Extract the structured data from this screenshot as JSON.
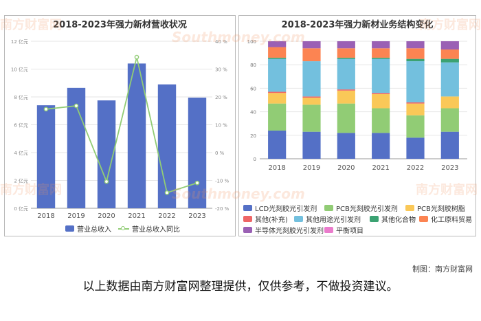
{
  "credit": "制图：南方财富网",
  "disclaimer": "以上数据由南方财富网整理提供，仅供参考，不做投资建议。",
  "watermark": {
    "brand": "南方财富网",
    "site": "Southmoney.com"
  },
  "chart_data": [
    {
      "type": "bar",
      "title": "2018-2023年强力新材营收状况",
      "categories": [
        "2018",
        "2019",
        "2020",
        "2021",
        "2022",
        "2023"
      ],
      "y_left": {
        "range": [
          0,
          12
        ],
        "ticks": [
          0,
          2,
          4,
          6,
          8,
          10,
          12
        ],
        "tick_labels": [
          "0 亿元",
          "2 亿元",
          "4 亿元",
          "6 亿元",
          "8 亿元",
          "10 亿元",
          "12 亿元"
        ]
      },
      "y_right": {
        "range": [
          -20,
          40
        ],
        "ticks": [
          -20,
          -10,
          0,
          10,
          20,
          30,
          40
        ],
        "tick_labels": [
          "-20 %",
          "-10 %",
          "0 %",
          "10 %",
          "20 %",
          "30 %",
          "40 %"
        ]
      },
      "grid": true,
      "legend_position": "bottom",
      "series": [
        {
          "name": "营业总收入",
          "type": "bar",
          "axis": "left",
          "color": "#5470c6",
          "values": [
            7.4,
            8.65,
            7.75,
            10.4,
            8.9,
            7.95
          ]
        },
        {
          "name": "营业总收入同比",
          "type": "line",
          "axis": "right",
          "color": "#91cc75",
          "values": [
            15.6,
            16.8,
            -10.4,
            34.3,
            -14.4,
            -10.9
          ]
        }
      ]
    },
    {
      "type": "bar",
      "stacked": true,
      "normalized": true,
      "title": "2018-2023年强力新材业务结构变化",
      "categories": [
        "2018",
        "2019",
        "2020",
        "2021",
        "2022",
        "2023"
      ],
      "y": {
        "range": [
          0,
          100
        ],
        "ticks": [
          0,
          20,
          40,
          60,
          80,
          100
        ],
        "tick_labels": [
          "0",
          "20",
          "40",
          "60",
          "80",
          "100"
        ]
      },
      "grid": true,
      "legend_position": "bottom",
      "series": [
        {
          "name": "LCD光刻胶光引发剂",
          "color": "#5470c6",
          "values": [
            24,
            23,
            22,
            22,
            18,
            23
          ]
        },
        {
          "name": "PCB光刻胶光引发剂",
          "color": "#91cc75",
          "values": [
            23,
            23,
            25,
            21,
            19,
            20
          ]
        },
        {
          "name": "PCB光刻胶树脂",
          "color": "#fac858",
          "values": [
            9,
            6,
            11,
            12,
            10,
            10
          ]
        },
        {
          "name": "其他(补充)",
          "color": "#ee6666",
          "values": [
            1,
            1,
            1,
            1,
            1,
            0
          ]
        },
        {
          "name": "其他用途光引发剂",
          "color": "#73c0de",
          "values": [
            28,
            30,
            26,
            29,
            35,
            29
          ]
        },
        {
          "name": "其他化合物",
          "color": "#3ba272",
          "values": [
            1,
            0,
            1,
            1,
            2,
            3
          ]
        },
        {
          "name": "化工原料贸易",
          "color": "#fc8452",
          "values": [
            9,
            11,
            8,
            8,
            9,
            8
          ]
        },
        {
          "name": "半导体光刻胶光引发剂",
          "color": "#9a60b4",
          "values": [
            5,
            6,
            6,
            6,
            6,
            7
          ]
        },
        {
          "name": "平衡项目",
          "color": "#ea7ccc",
          "values": [
            0,
            0,
            0,
            0,
            0,
            0
          ]
        }
      ]
    }
  ]
}
